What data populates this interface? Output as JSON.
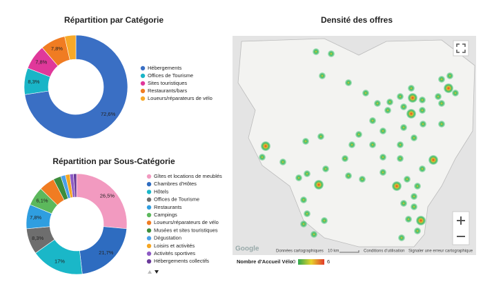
{
  "chart_data": [
    {
      "type": "pie",
      "title": "Répartition par Catégorie",
      "categories": [
        "Hébergements",
        "Offices de Tourisme",
        "Sites touristiques",
        "Restaurants/bars",
        "Loueurs/réparateurs de vélo"
      ],
      "values": [
        72.6,
        8.3,
        7.8,
        7.8,
        3.5
      ],
      "value_labels": [
        "72,6%",
        "8,3%",
        "7,8%",
        "7,8%",
        null
      ],
      "colors": [
        "#3a6fc4",
        "#19b5c7",
        "#e0389a",
        "#f07c22",
        "#f7a928"
      ]
    },
    {
      "type": "pie",
      "title": "Répartition par Sous-Catégorie",
      "categories": [
        "Gîtes et locations de meublés",
        "Chambres d'Hôtes",
        "Hôtels",
        "Offices de Tourisme",
        "Restaurants",
        "Campings",
        "Loueurs/réparateurs de vélo",
        "Musées et sites touristiques",
        "Dégustation",
        "Loisirs et activités",
        "Activités sportives",
        "Hébergements collectifs"
      ],
      "values": [
        26.5,
        21.7,
        17,
        8.3,
        7.8,
        6.1,
        5.0,
        2.5,
        1.5,
        1.4,
        1.2,
        1.0
      ],
      "value_labels": [
        "26,5%",
        "21,7%",
        "17%",
        "8,3%",
        "7,8%",
        "6,1%",
        null,
        null,
        null,
        null,
        null,
        null
      ],
      "colors": [
        "#f29ac0",
        "#2e6cc0",
        "#1ab7c8",
        "#6e6e6e",
        "#2f9ee0",
        "#5cb85c",
        "#f07c22",
        "#3c8d3c",
        "#4aa0e8",
        "#f5a623",
        "#8e5bc4",
        "#6a3a9a"
      ]
    }
  ],
  "map": {
    "title": "Densité des offres",
    "attribution": "Données cartographiques",
    "scale": "10 km",
    "terms": "Conditions d'utilisation",
    "report": "Signaler une erreur cartographique",
    "logo": "Google",
    "legend_title": "Nombre d'Accueil Vélo",
    "legend_min": "0",
    "legend_max": "6"
  }
}
